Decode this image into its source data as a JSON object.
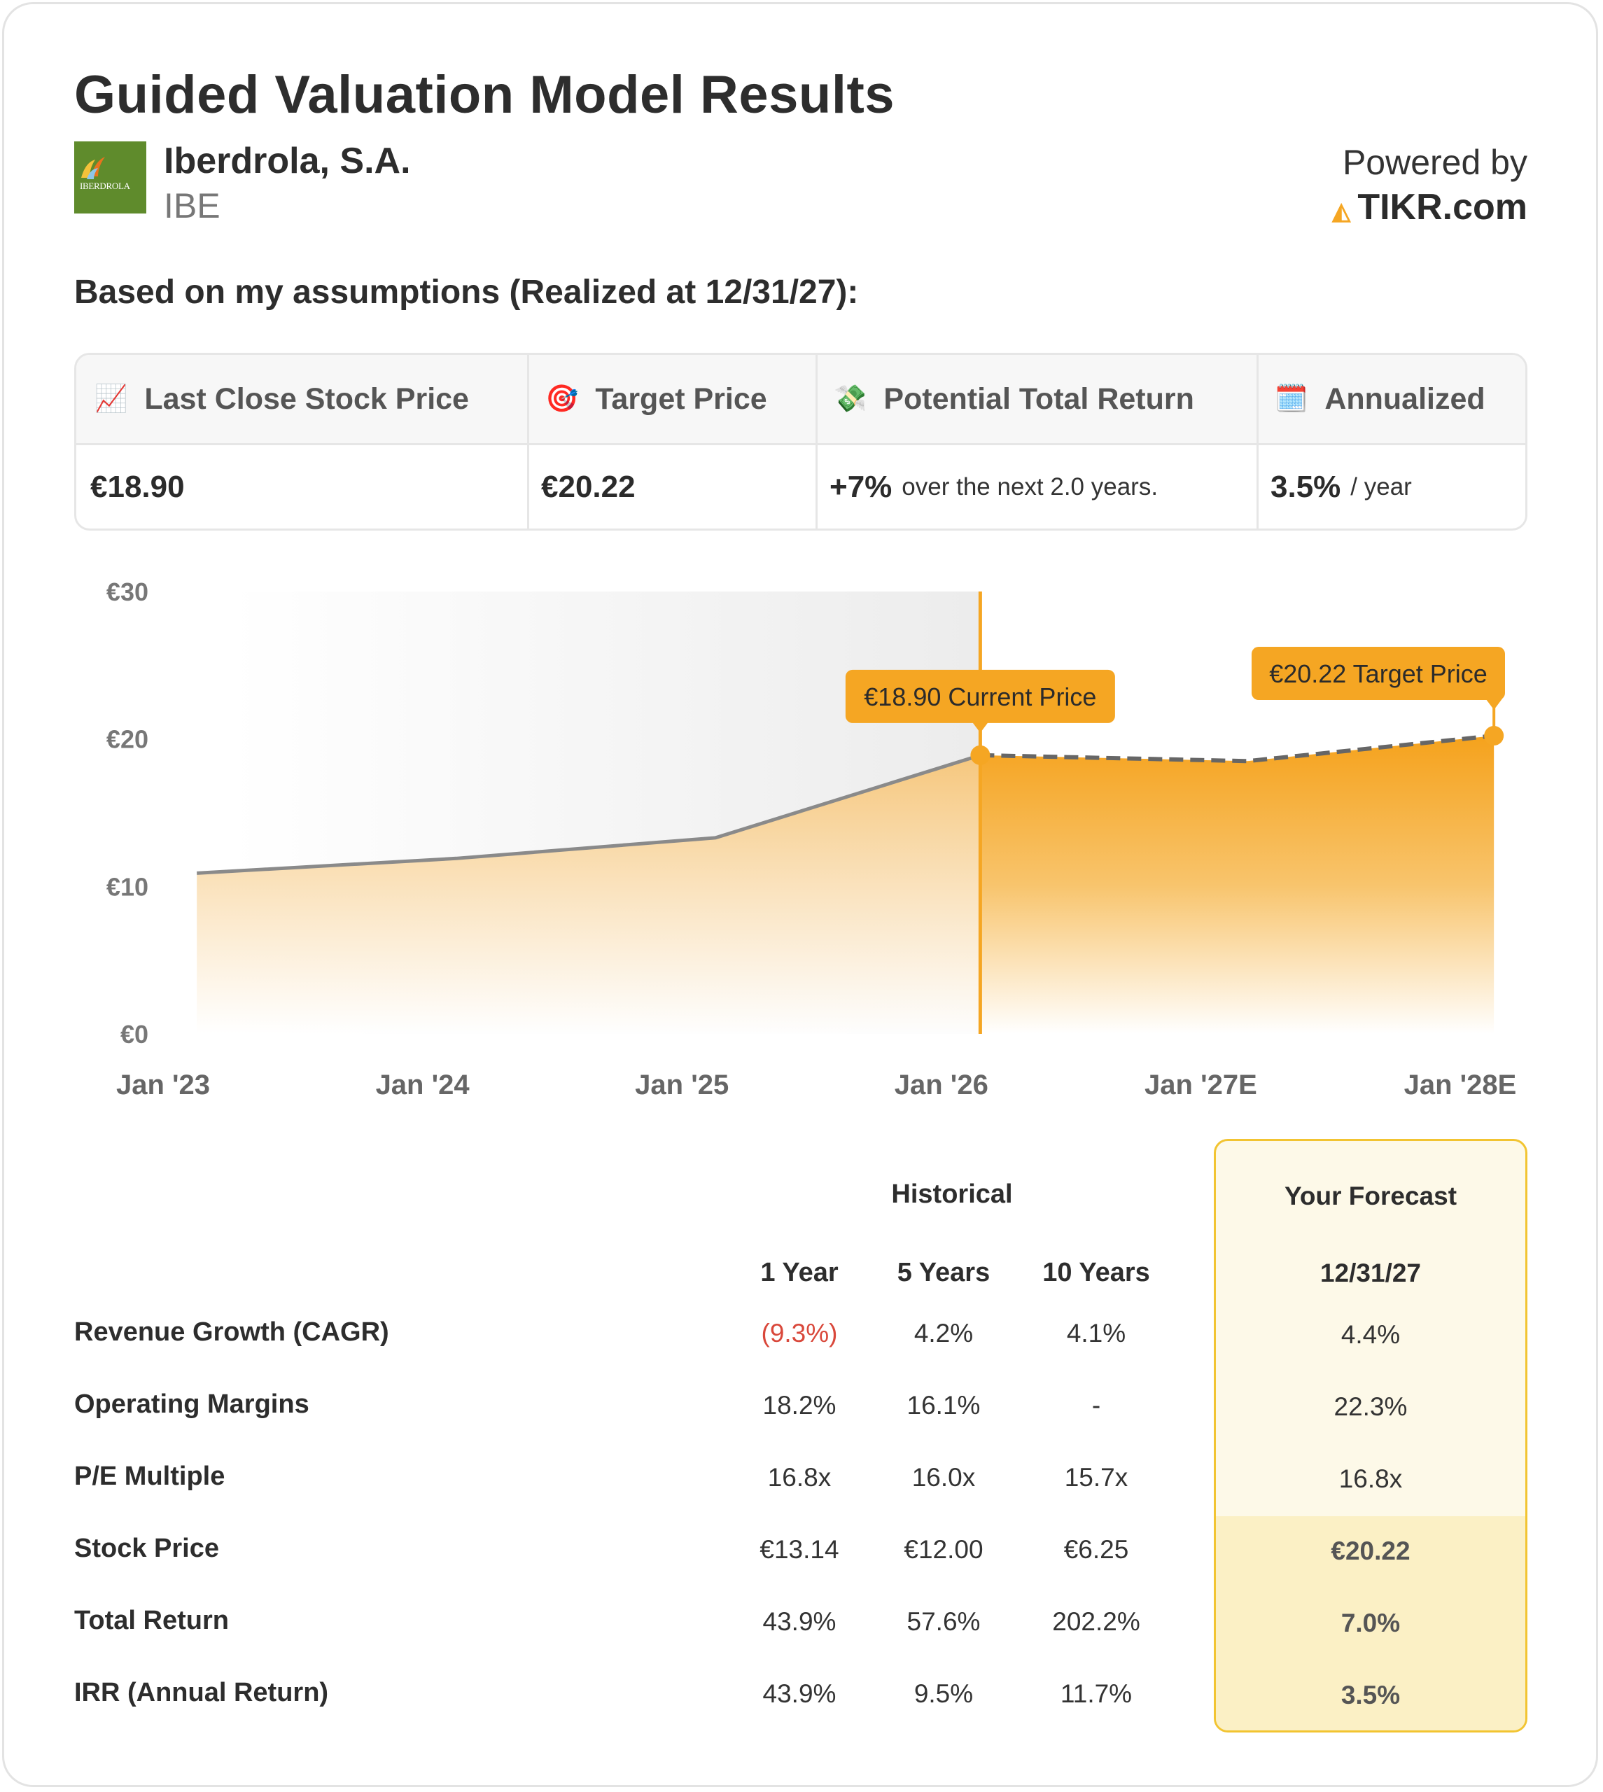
{
  "header": {
    "title": "Guided Valuation Model Results",
    "company": "Iberdrola, S.A.",
    "ticker": "IBE",
    "logo_text": "IBERDROLA",
    "powered_by": "Powered by",
    "brand": "TIKR.com",
    "assumptions": "Based on my assumptions (Realized at 12/31/27):"
  },
  "metrics": [
    {
      "icon": "📈",
      "icon_name": "chart-increasing-icon",
      "label": "Last Close Stock Price",
      "value": "€18.90",
      "suffix": ""
    },
    {
      "icon": "🎯",
      "icon_name": "target-icon",
      "label": "Target Price",
      "value": "€20.22",
      "suffix": ""
    },
    {
      "icon": "💸",
      "icon_name": "money-wings-icon",
      "label": "Potential Total Return",
      "value": "+7%",
      "suffix": "over the next 2.0 years."
    },
    {
      "icon": "🗓️",
      "icon_name": "calendar-icon",
      "label": "Annualized",
      "value": "3.5%",
      "suffix": "/ year"
    }
  ],
  "chart_data": {
    "type": "area",
    "x": [
      "Jan '23",
      "Jan '24",
      "Jan '25",
      "Jan '26",
      "Jan '27E",
      "Jan '28E"
    ],
    "yticks": [
      "€0",
      "€10",
      "€20",
      "€30"
    ],
    "ylim": [
      0,
      30
    ],
    "series": [
      {
        "name": "historical",
        "points": [
          [
            0.13,
            10.9
          ],
          [
            1.13,
            11.9
          ],
          [
            2.13,
            13.3
          ],
          [
            3.15,
            18.9
          ]
        ]
      },
      {
        "name": "forecast",
        "points": [
          [
            3.15,
            18.9
          ],
          [
            4.18,
            18.5
          ],
          [
            5.13,
            20.22
          ]
        ]
      }
    ],
    "annotations": [
      {
        "label": "€18.90 Current Price",
        "x": 3.15,
        "y": 18.9
      },
      {
        "label": "€20.22 Target Price",
        "x": 5.13,
        "y": 20.22
      }
    ],
    "colors": {
      "accent": "#f5a623",
      "line": "#8a8a8a"
    }
  },
  "table": {
    "historical_label": "Historical",
    "forecast_label": "Your Forecast",
    "columns": [
      "1 Year",
      "5 Years",
      "10 Years"
    ],
    "forecast_column": "12/31/27",
    "rows": [
      {
        "label": "Revenue Growth (CAGR)",
        "values": [
          "(9.3%)",
          "4.2%",
          "4.1%"
        ],
        "forecast": "4.4%"
      },
      {
        "label": "Operating Margins",
        "values": [
          "18.2%",
          "16.1%",
          "-"
        ],
        "forecast": "22.3%"
      },
      {
        "label": "P/E Multiple",
        "values": [
          "16.8x",
          "16.0x",
          "15.7x"
        ],
        "forecast": "16.8x"
      },
      {
        "label": "Stock Price",
        "values": [
          "€13.14",
          "€12.00",
          "€6.25"
        ],
        "forecast": "€20.22"
      },
      {
        "label": "Total Return",
        "values": [
          "43.9%",
          "57.6%",
          "202.2%"
        ],
        "forecast": "7.0%"
      },
      {
        "label": "IRR (Annual Return)",
        "values": [
          "43.9%",
          "9.5%",
          "11.7%"
        ],
        "forecast": "3.5%"
      }
    ]
  }
}
